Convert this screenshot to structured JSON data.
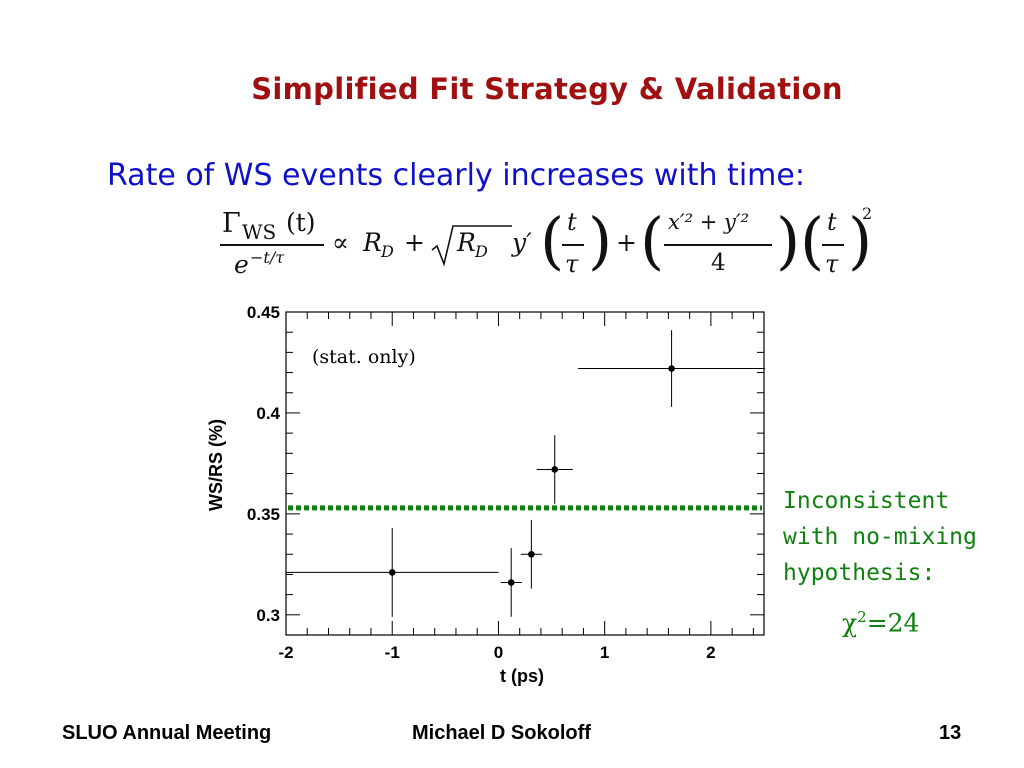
{
  "slide": {
    "title": "Simplified Fit Strategy & Validation",
    "subtitle": "Rate of WS events clearly increases with time:"
  },
  "formula": {
    "gamma_sub": "WS",
    "t_arg": "(t)",
    "denominator": "e",
    "denominator_exp": "−t/τ",
    "propto": "∝",
    "RD": "R",
    "RD_sub": "D",
    "plus": "+",
    "yprime": "y′",
    "t": "t",
    "tau": "τ",
    "xy_num": "x′² + y′²",
    "four": "4",
    "square": "2"
  },
  "annotation": {
    "lines": [
      "Inconsistent",
      "with no-mixing",
      "hypothesis:"
    ],
    "chi_symbol": "χ",
    "chi_exp": "2",
    "chi_value": "=24"
  },
  "footer": {
    "left": "SLUO Annual Meeting",
    "center": "Michael D Sokoloff",
    "right": "13"
  },
  "colors": {
    "title": "#a01010",
    "subtitle": "#1010c8",
    "annotation": "#108010",
    "fit_line": "#108010"
  },
  "chart_data": {
    "type": "scatter",
    "xlabel": "t (ps)",
    "ylabel": "WS/RS (%)",
    "xlim": [
      -2,
      2.5
    ],
    "ylim": [
      0.29,
      0.45
    ],
    "xticks": [
      -2,
      -1,
      0,
      1,
      2
    ],
    "yticks": [
      0.3,
      0.35,
      0.4,
      0.45
    ],
    "xtick_labels": [
      "-2",
      "-1",
      "0",
      "1",
      "2"
    ],
    "ytick_labels": [
      "0.3",
      "0.35",
      "0.4",
      "0.45"
    ],
    "annotation": "(stat. only)",
    "points": [
      {
        "x": -1.0,
        "y": 0.321,
        "xerr_low": 1.0,
        "xerr_high": 1.0,
        "yerr": 0.022
      },
      {
        "x": 0.12,
        "y": 0.316,
        "xerr_low": 0.1,
        "xerr_high": 0.1,
        "yerr": 0.017
      },
      {
        "x": 0.31,
        "y": 0.33,
        "xerr_low": 0.1,
        "xerr_high": 0.1,
        "yerr": 0.017
      },
      {
        "x": 0.53,
        "y": 0.372,
        "xerr_low": 0.17,
        "xerr_high": 0.17,
        "yerr": 0.017
      },
      {
        "x": 1.63,
        "y": 0.422,
        "xerr_low": 0.88,
        "xerr_high": 0.88,
        "yerr": 0.019
      }
    ],
    "fit_line": {
      "y": 0.353,
      "style": "dotted"
    }
  }
}
